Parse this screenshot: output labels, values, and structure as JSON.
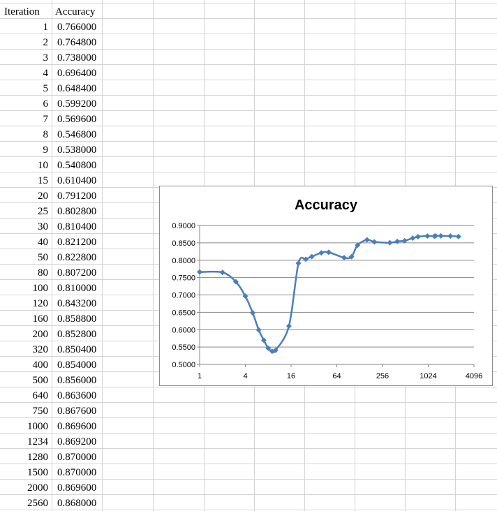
{
  "sheet": {
    "headers": [
      "Iteration",
      "Accuracy"
    ],
    "rows": [
      [
        "1",
        "0.766000"
      ],
      [
        "2",
        "0.764800"
      ],
      [
        "3",
        "0.738000"
      ],
      [
        "4",
        "0.696400"
      ],
      [
        "5",
        "0.648400"
      ],
      [
        "6",
        "0.599200"
      ],
      [
        "7",
        "0.569600"
      ],
      [
        "8",
        "0.546800"
      ],
      [
        "9",
        "0.538000"
      ],
      [
        "10",
        "0.540800"
      ],
      [
        "15",
        "0.610400"
      ],
      [
        "20",
        "0.791200"
      ],
      [
        "25",
        "0.802800"
      ],
      [
        "30",
        "0.810400"
      ],
      [
        "40",
        "0.821200"
      ],
      [
        "50",
        "0.822800"
      ],
      [
        "80",
        "0.807200"
      ],
      [
        "100",
        "0.810000"
      ],
      [
        "120",
        "0.843200"
      ],
      [
        "160",
        "0.858800"
      ],
      [
        "200",
        "0.852800"
      ],
      [
        "320",
        "0.850400"
      ],
      [
        "400",
        "0.854000"
      ],
      [
        "500",
        "0.856000"
      ],
      [
        "640",
        "0.863600"
      ],
      [
        "750",
        "0.867600"
      ],
      [
        "1000",
        "0.869600"
      ],
      [
        "1234",
        "0.869200"
      ],
      [
        "1280",
        "0.870000"
      ],
      [
        "1500",
        "0.870000"
      ],
      [
        "2000",
        "0.869600"
      ],
      [
        "2560",
        "0.868000"
      ]
    ]
  },
  "chart_data": {
    "type": "line",
    "title": "Accuracy",
    "xscale": "log2",
    "xticks": [
      "1",
      "4",
      "16",
      "64",
      "256",
      "1024",
      "4096"
    ],
    "yticks": [
      "0.9000",
      "0.8500",
      "0.8000",
      "0.7500",
      "0.7000",
      "0.6500",
      "0.6000",
      "0.5500",
      "0.5000"
    ],
    "xlim": [
      1,
      4096
    ],
    "ylim": [
      0.5,
      0.9
    ],
    "grid": "horizontal",
    "marker": "diamond",
    "color": "#4a7ebb",
    "x": [
      1,
      2,
      3,
      4,
      5,
      6,
      7,
      8,
      9,
      10,
      15,
      20,
      25,
      30,
      40,
      50,
      80,
      100,
      120,
      160,
      200,
      320,
      400,
      500,
      640,
      750,
      1000,
      1234,
      1280,
      1500,
      2000,
      2560
    ],
    "y": [
      0.766,
      0.7648,
      0.738,
      0.6964,
      0.6484,
      0.5992,
      0.5696,
      0.5468,
      0.538,
      0.5408,
      0.6104,
      0.7912,
      0.8028,
      0.8104,
      0.8212,
      0.8228,
      0.8072,
      0.81,
      0.8432,
      0.8588,
      0.8528,
      0.8504,
      0.854,
      0.856,
      0.8636,
      0.8676,
      0.8696,
      0.8692,
      0.87,
      0.87,
      0.8696,
      0.868
    ]
  }
}
